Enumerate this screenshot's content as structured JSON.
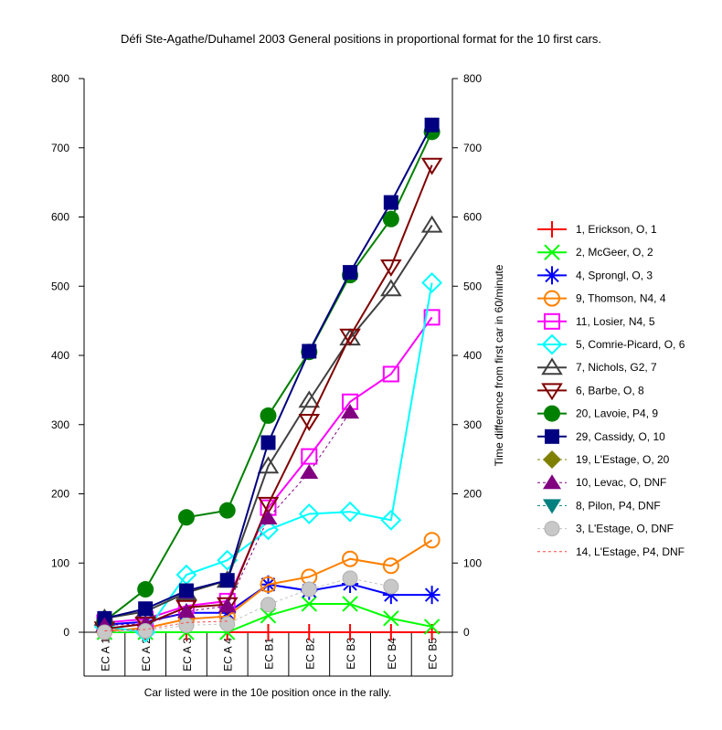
{
  "chart_data": {
    "type": "line",
    "title": "Défi Ste-Agathe/Duhamel 2003  General positions in proportional format for the 10 first cars.",
    "xlabel": "Car listed were in the 10e position once in the rally.",
    "ylabel_right": "Time difference from first car in 60/minute",
    "ylim": [
      0,
      800
    ],
    "yticks": [
      "0",
      "100",
      "200",
      "300",
      "400",
      "500",
      "600",
      "700",
      "800"
    ],
    "categories": [
      "EC A 1",
      "EC A 2",
      "EC A 3",
      "EC A 4",
      "EC B1",
      "EC B2",
      "EC B3",
      "EC B4",
      "EC B5"
    ],
    "legend_position": "right",
    "grid": false,
    "series": [
      {
        "name": "1, Erickson, O, 1",
        "color": "#ff0000",
        "marker": "plus",
        "dash": false,
        "values": [
          0,
          0,
          0,
          0,
          0,
          0,
          0,
          0,
          0
        ]
      },
      {
        "name": "2, McGeer, O, 2",
        "color": "#00ff00",
        "marker": "x",
        "dash": false,
        "values": [
          0,
          0,
          0,
          0,
          24,
          41,
          41,
          20,
          8
        ]
      },
      {
        "name": "4, Sprongl, O, 3",
        "color": "#0000ff",
        "marker": "asterisk",
        "dash": false,
        "values": [
          11,
          15,
          28,
          28,
          69,
          60,
          70,
          54,
          54
        ]
      },
      {
        "name": "9, Thomson, N4, 4",
        "color": "#ff8000",
        "marker": "circle-open",
        "dash": false,
        "values": [
          2,
          6,
          19,
          23,
          69,
          80,
          106,
          96,
          133
        ]
      },
      {
        "name": "11, Losier, N4, 5",
        "color": "#ff00ff",
        "marker": "square-open",
        "dash": false,
        "values": [
          14,
          19,
          38,
          45,
          180,
          254,
          333,
          373,
          455
        ]
      },
      {
        "name": "5, Comrie-Picard, O, 6",
        "color": "#00ffff",
        "marker": "diamond-open",
        "dash": false,
        "values": [
          8,
          0,
          83,
          104,
          148,
          171,
          174,
          162,
          505
        ]
      },
      {
        "name": "7, Nichols, G2, 7",
        "color": "#404040",
        "marker": "triangle-up-open",
        "dash": false,
        "values": [
          20,
          30,
          57,
          75,
          240,
          335,
          425,
          496,
          588
        ]
      },
      {
        "name": "6, Barbe, O, 8",
        "color": "#800000",
        "marker": "triangle-down-open",
        "dash": false,
        "values": [
          5,
          12,
          36,
          40,
          185,
          305,
          428,
          528,
          675
        ]
      },
      {
        "name": "20, Lavoie, P4, 9",
        "color": "#008000",
        "marker": "circle-filled",
        "dash": false,
        "values": [
          16,
          62,
          166,
          176,
          313,
          405,
          516,
          597,
          723
        ]
      },
      {
        "name": "29, Cassidy, O, 10",
        "color": "#000080",
        "marker": "square-filled",
        "dash": false,
        "values": [
          20,
          34,
          60,
          75,
          274,
          406,
          520,
          621,
          733
        ]
      },
      {
        "name": "19, L'Estage, O, 20",
        "color": "#808000",
        "marker": "diamond-filled",
        "dash": true,
        "values": []
      },
      {
        "name": "10, Levac, O, DNF",
        "color": "#800080",
        "marker": "triangle-up-filled",
        "dash": true,
        "values": [
          10,
          12,
          30,
          38,
          165,
          231,
          318,
          null,
          null
        ]
      },
      {
        "name": "8, Pilon, P4, DNF",
        "color": "#008080",
        "marker": "triangle-down-filled",
        "dash": true,
        "values": []
      },
      {
        "name": "3, L'Estage, O, DNF",
        "color": "#c0c0c0",
        "marker": "sphere",
        "dash": true,
        "values": [
          0,
          2,
          10,
          12,
          40,
          62,
          78,
          66,
          null
        ]
      },
      {
        "name": "14, L'Estage, P4, DNF",
        "color": "#ff4040",
        "marker": "none",
        "dash": true,
        "values": [
          2,
          4,
          14,
          16,
          null,
          null,
          null,
          null,
          null
        ]
      }
    ]
  }
}
